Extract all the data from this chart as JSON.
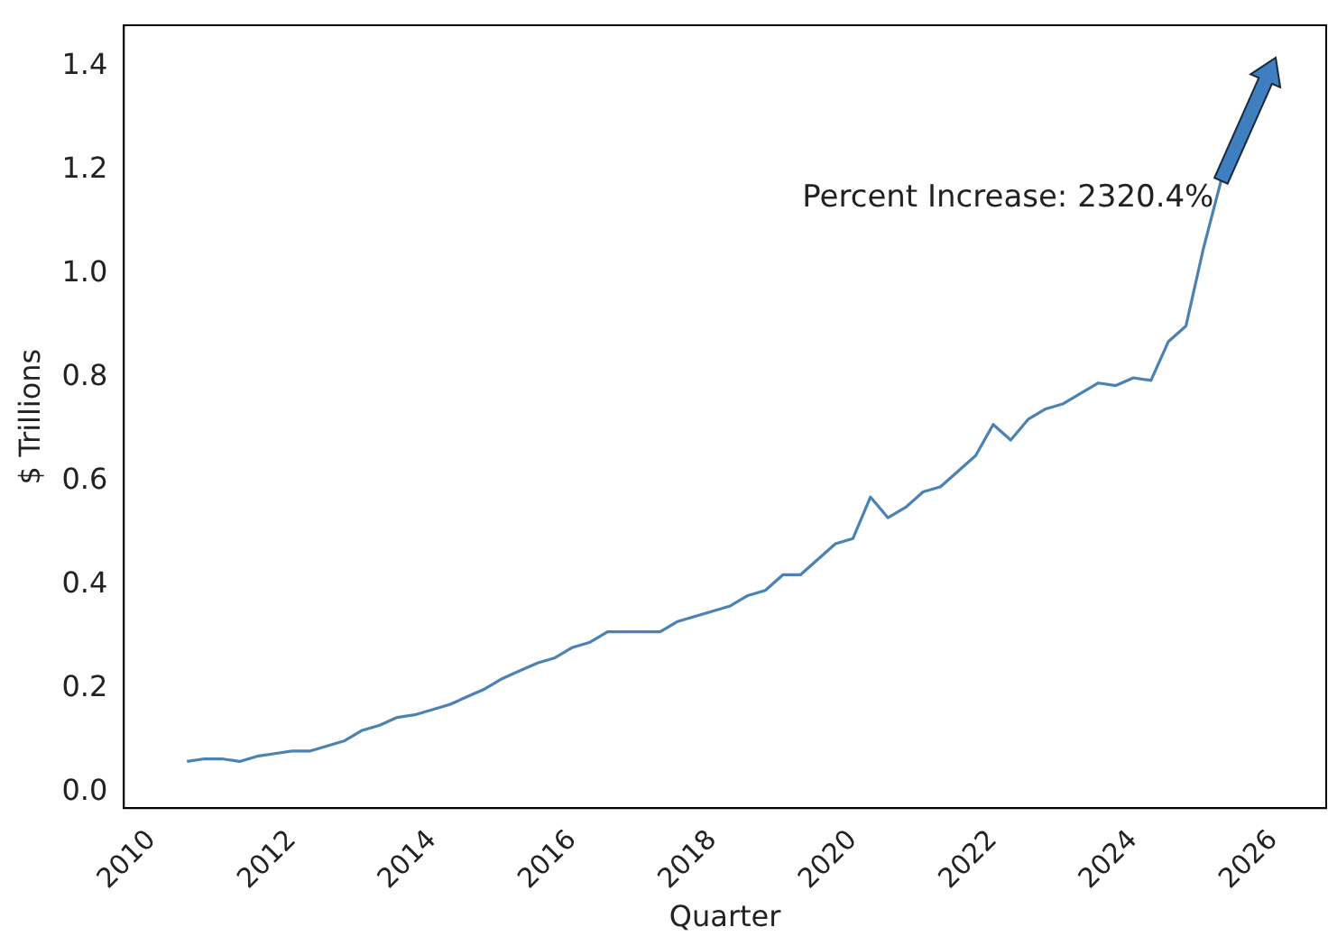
{
  "chart_data": {
    "type": "line",
    "xlabel": "Quarter",
    "ylabel": "$ Trillions",
    "x": [
      2010.5,
      2010.75,
      2011,
      2011.25,
      2011.5,
      2011.75,
      2012,
      2012.25,
      2012.5,
      2012.75,
      2013,
      2013.25,
      2013.5,
      2013.75,
      2014,
      2014.25,
      2014.5,
      2014.75,
      2015,
      2015.25,
      2015.5,
      2015.75,
      2016,
      2016.25,
      2016.5,
      2016.75,
      2017,
      2017.25,
      2017.5,
      2017.75,
      2018,
      2018.25,
      2018.5,
      2018.75,
      2019,
      2019.25,
      2019.5,
      2019.75,
      2020,
      2020.25,
      2020.5,
      2020.75,
      2021,
      2021.25,
      2021.5,
      2021.75,
      2022,
      2022.25,
      2022.5,
      2022.75,
      2023,
      2023.25,
      2023.5,
      2023.75,
      2024,
      2024.25,
      2024.5,
      2024.75,
      2025,
      2025.25
    ],
    "series": [
      {
        "color": "#4a82b4",
        "values": [
          0.06,
          0.065,
          0.065,
          0.06,
          0.07,
          0.075,
          0.08,
          0.08,
          0.09,
          0.1,
          0.12,
          0.13,
          0.145,
          0.15,
          0.16,
          0.17,
          0.185,
          0.2,
          0.22,
          0.235,
          0.25,
          0.26,
          0.28,
          0.29,
          0.31,
          0.31,
          0.31,
          0.31,
          0.33,
          0.34,
          0.35,
          0.36,
          0.38,
          0.39,
          0.42,
          0.42,
          0.45,
          0.48,
          0.49,
          0.57,
          0.53,
          0.55,
          0.58,
          0.59,
          0.62,
          0.65,
          0.71,
          0.68,
          0.72,
          0.74,
          0.75,
          0.77,
          0.79,
          0.785,
          0.8,
          0.795,
          0.87,
          0.9,
          1.05,
          1.18
        ]
      }
    ],
    "xlim": [
      2009.6,
      2026.75
    ],
    "xticks": [
      2010,
      2012,
      2014,
      2016,
      2018,
      2020,
      2022,
      2024,
      2026
    ],
    "ylim": [
      -0.03,
      1.48
    ],
    "yticks": [
      {
        "value": 0,
        "label": "0.0"
      },
      0.2,
      0.4,
      0.6,
      0.8,
      {
        "value": 1,
        "label": "1.0"
      },
      1.2,
      1.4
    ],
    "grid": false,
    "legend": false,
    "marker": "none",
    "line_style": "solid",
    "annotations": [
      {
        "text": "Percent Increase: 2320.4%",
        "x": 2025.25,
        "y": 1.18
      }
    ]
  }
}
